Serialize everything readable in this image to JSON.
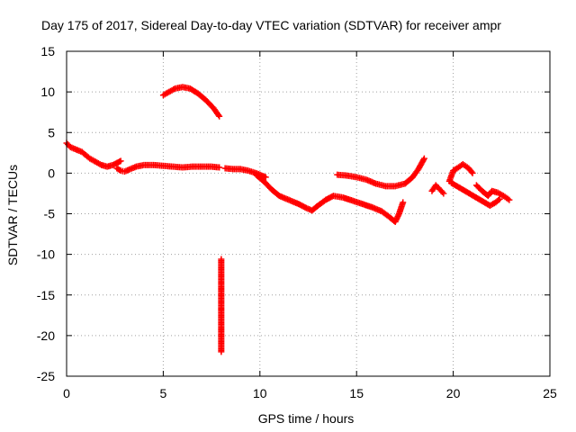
{
  "chart_data": {
    "type": "scatter",
    "title": "Day 175 of 2017, Sidereal Day-to-day VTEC variation (SDTVAR) for receiver ampr",
    "xlabel": "GPS time / hours",
    "ylabel": "SDTVAR / TECUs",
    "xlim": [
      0,
      25
    ],
    "ylim": [
      -25,
      15
    ],
    "xticks": [
      0,
      5,
      10,
      15,
      20,
      25
    ],
    "yticks": [
      -25,
      -20,
      -15,
      -10,
      -5,
      0,
      5,
      10,
      15
    ],
    "grid": true,
    "marker": "plus",
    "color": "#ff0000",
    "series": [
      {
        "name": "SDTVAR",
        "segments": [
          [
            [
              0.0,
              3.7
            ],
            [
              0.2,
              3.2
            ],
            [
              0.5,
              2.9
            ],
            [
              0.8,
              2.6
            ],
            [
              1.0,
              2.2
            ],
            [
              1.2,
              1.8
            ],
            [
              1.5,
              1.4
            ],
            [
              1.8,
              1.0
            ],
            [
              2.1,
              0.8
            ],
            [
              2.4,
              1.0
            ],
            [
              2.8,
              1.5
            ]
          ],
          [
            [
              2.6,
              0.6
            ],
            [
              2.8,
              0.3
            ],
            [
              3.0,
              0.2
            ],
            [
              3.3,
              0.5
            ],
            [
              3.6,
              0.8
            ],
            [
              4.0,
              1.0
            ],
            [
              4.5,
              1.0
            ],
            [
              5.0,
              0.9
            ],
            [
              5.5,
              0.8
            ],
            [
              6.0,
              0.7
            ],
            [
              6.5,
              0.8
            ],
            [
              7.0,
              0.8
            ],
            [
              7.5,
              0.8
            ],
            [
              7.9,
              0.7
            ]
          ],
          [
            [
              5.0,
              9.6
            ],
            [
              5.3,
              10.0
            ],
            [
              5.6,
              10.4
            ],
            [
              6.0,
              10.6
            ],
            [
              6.4,
              10.4
            ],
            [
              6.8,
              9.8
            ],
            [
              7.2,
              9.0
            ],
            [
              7.6,
              8.0
            ],
            [
              7.9,
              7.0
            ]
          ],
          [
            [
              8.2,
              0.6
            ],
            [
              8.6,
              0.5
            ],
            [
              9.0,
              0.5
            ],
            [
              9.4,
              0.3
            ],
            [
              9.8,
              0.0
            ],
            [
              10.3,
              -0.5
            ]
          ],
          [
            [
              9.8,
              -0.2
            ],
            [
              10.2,
              -1.0
            ],
            [
              10.6,
              -2.0
            ],
            [
              11.0,
              -2.8
            ],
            [
              11.5,
              -3.3
            ],
            [
              12.0,
              -3.8
            ],
            [
              12.4,
              -4.3
            ],
            [
              12.7,
              -4.6
            ],
            [
              13.0,
              -4.0
            ],
            [
              13.4,
              -3.3
            ],
            [
              13.8,
              -2.8
            ],
            [
              14.3,
              -3.0
            ],
            [
              14.8,
              -3.4
            ],
            [
              15.3,
              -3.8
            ],
            [
              15.8,
              -4.2
            ],
            [
              16.3,
              -4.7
            ],
            [
              16.7,
              -5.4
            ],
            [
              17.0,
              -6.0
            ],
            [
              17.2,
              -5.0
            ],
            [
              17.4,
              -3.6
            ]
          ],
          [
            [
              14.0,
              -0.2
            ],
            [
              14.5,
              -0.3
            ],
            [
              15.0,
              -0.5
            ],
            [
              15.5,
              -0.8
            ],
            [
              16.0,
              -1.3
            ],
            [
              16.5,
              -1.6
            ],
            [
              17.0,
              -1.6
            ],
            [
              17.5,
              -1.3
            ],
            [
              17.9,
              -0.5
            ],
            [
              18.2,
              0.5
            ],
            [
              18.5,
              1.8
            ]
          ],
          [
            [
              18.9,
              -2.2
            ],
            [
              19.1,
              -1.5
            ],
            [
              19.3,
              -2.0
            ],
            [
              19.5,
              -2.5
            ]
          ],
          [
            [
              19.8,
              -1.0
            ],
            [
              20.0,
              0.3
            ],
            [
              20.2,
              0.6
            ],
            [
              20.5,
              1.1
            ],
            [
              20.8,
              0.6
            ],
            [
              21.0,
              0.0
            ]
          ],
          [
            [
              21.2,
              -1.5
            ],
            [
              21.5,
              -2.2
            ],
            [
              21.8,
              -2.8
            ],
            [
              22.0,
              -2.2
            ],
            [
              22.3,
              -2.4
            ],
            [
              22.6,
              -2.8
            ],
            [
              22.9,
              -3.3
            ]
          ],
          [
            [
              19.9,
              -1.2
            ],
            [
              21.9,
              -4.0
            ],
            [
              22.2,
              -3.6
            ],
            [
              22.4,
              -3.2
            ]
          ],
          [
            [
              8.0,
              -10.6
            ],
            [
              8.0,
              -22.0
            ]
          ]
        ]
      }
    ]
  }
}
